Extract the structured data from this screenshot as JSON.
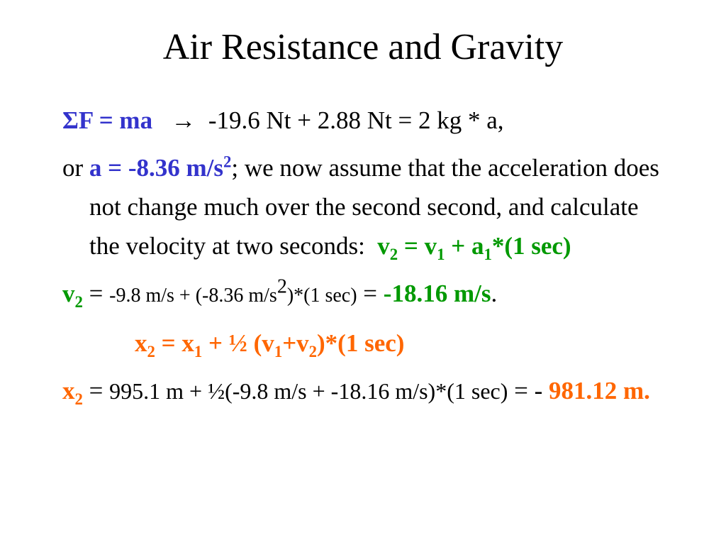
{
  "title": "Air Resistance and Gravity",
  "paragraphs": [
    [
      "ΣF = ma",
      "→",
      "-19.6 Nt + 2.88 Nt = 2 kg * a,"
    ],
    [
      "or ",
      "a = -8.36 m/s",
      "2",
      ";  we now assume that the acceleration does not change much over the second second, and calculate the velocity at two seconds:",
      "v",
      "2",
      " = v",
      "1",
      " + a",
      "1",
      "*(1 sec)"
    ],
    [
      "v",
      "2",
      "=",
      "-9.8 m/s + (-8.36 m/s",
      "2",
      ")*(1 sec)",
      "=",
      "-18.16 m/s",
      "."
    ],
    [
      "x",
      "2",
      " = x",
      "1",
      " + ½ (v",
      "1",
      "+v",
      "2",
      ")*(1 sec)"
    ],
    [
      "x",
      "2",
      "=",
      "995.1 m + ½(-9.8 m/s + -18.16 m/s)*(1 sec)",
      "=",
      "-",
      "981.12 m."
    ]
  ]
}
